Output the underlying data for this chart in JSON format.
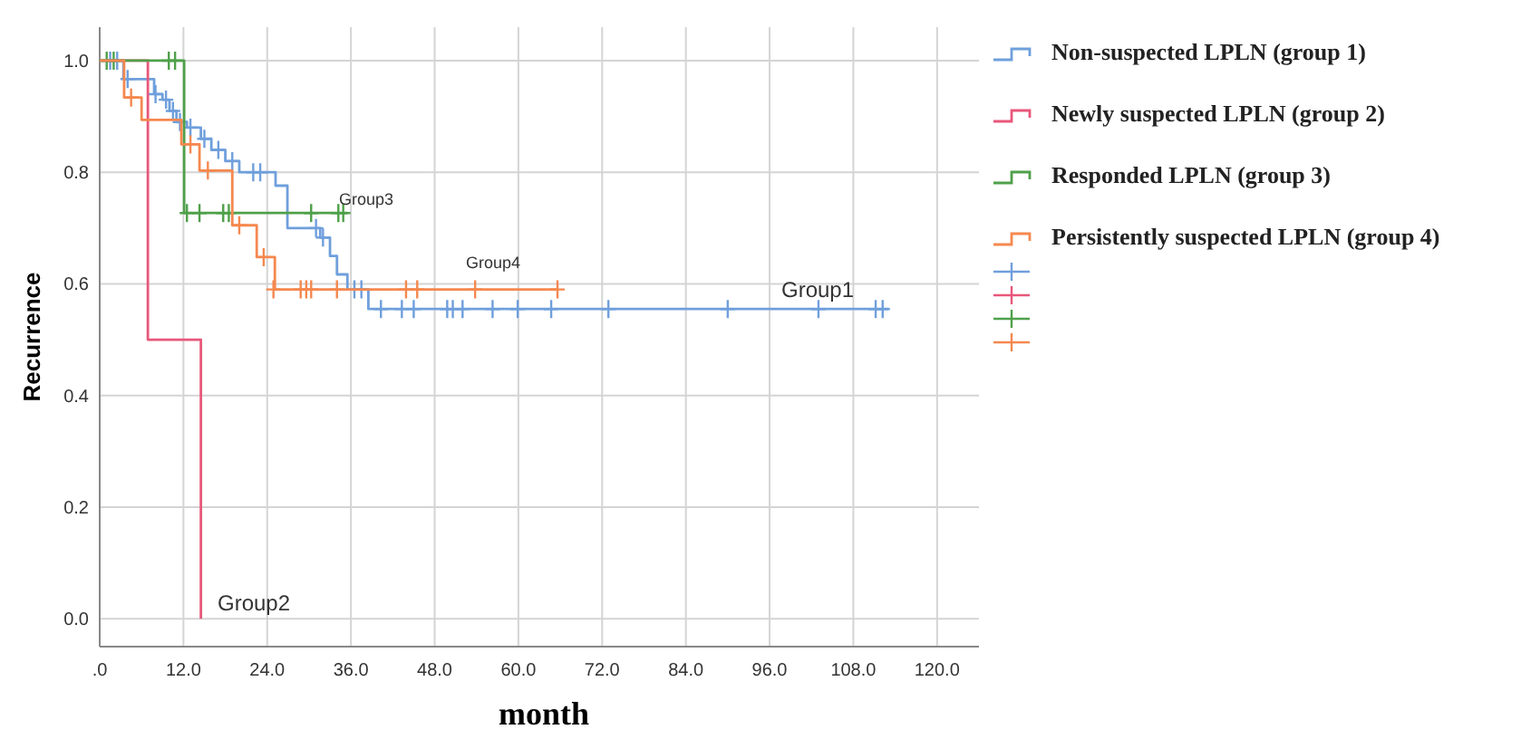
{
  "chart_data": {
    "type": "step",
    "xlabel": "month",
    "ylabel": "Recurrence",
    "xlim": [
      0,
      126
    ],
    "ylim": [
      -0.05,
      1.06
    ],
    "xticks": [
      {
        "value": 0,
        "label": ".0"
      },
      {
        "value": 12,
        "label": "12.0"
      },
      {
        "value": 24,
        "label": "24.0"
      },
      {
        "value": 36,
        "label": "36.0"
      },
      {
        "value": 48,
        "label": "48.0"
      },
      {
        "value": 60,
        "label": "60.0"
      },
      {
        "value": 72,
        "label": "72.0"
      },
      {
        "value": 84,
        "label": "84.0"
      },
      {
        "value": 96,
        "label": "96.0"
      },
      {
        "value": 108,
        "label": "108.0"
      },
      {
        "value": 120,
        "label": "120.0"
      }
    ],
    "yticks": [
      {
        "value": 0,
        "label": "0.0"
      },
      {
        "value": 0.2,
        "label": "0.2"
      },
      {
        "value": 0.4,
        "label": "0.4"
      },
      {
        "value": 0.6,
        "label": "0.6"
      },
      {
        "value": 0.8,
        "label": "0.8"
      },
      {
        "value": 1,
        "label": "1.0"
      }
    ],
    "grid": true,
    "legend": "right",
    "line_style": "solid",
    "series": [
      {
        "name": "Non-suspected LPLN (group 1)",
        "color": "#6f9fdc",
        "x": [
          0,
          3.4,
          7.8,
          9,
          10,
          11,
          12.5,
          14.5,
          16,
          18,
          20,
          25.2,
          26.9,
          31.6,
          33,
          34,
          35.5,
          38.5,
          113
        ],
        "values": [
          1,
          0.967,
          0.94,
          0.93,
          0.91,
          0.89,
          0.88,
          0.86,
          0.84,
          0.82,
          0.8,
          0.776,
          0.7,
          0.683,
          0.65,
          0.617,
          0.59,
          0.555,
          0.555
        ]
      },
      {
        "name": "Newly suspected LPLN (group 2)",
        "color": "#e8577a",
        "x": [
          0,
          6.9,
          14.5
        ],
        "values": [
          1,
          0.5,
          0
        ]
      },
      {
        "name": "Responded LPLN (group 3)",
        "color": "#4fa04a",
        "x": [
          0,
          12.1,
          35.5
        ],
        "values": [
          1,
          0.727,
          0.727
        ]
      },
      {
        "name": "Persistently suspected LPLN (group 4)",
        "color": "#f5884f",
        "x": [
          0,
          3.5,
          6,
          11.7,
          14.3,
          19,
          22.5,
          25.1,
          65.7
        ],
        "values": [
          1,
          0.934,
          0.894,
          0.85,
          0.803,
          0.705,
          0.648,
          0.59,
          0.59
        ]
      },
      {
        "type": "scatter",
        "marker": "cross",
        "color": "#6f9fdc",
        "x": [
          1.5,
          2.5,
          4,
          8,
          9.5,
          10.5,
          11.5,
          13,
          15,
          17,
          19,
          22,
          23,
          31,
          32,
          36.5,
          37.5,
          40.3,
          43.3,
          45,
          49.8,
          50.6,
          52,
          56.3,
          59.9,
          64.7,
          72.9,
          90,
          103,
          111.2,
          112.2
        ],
        "values": [
          1,
          1,
          0.967,
          0.94,
          0.93,
          0.91,
          0.89,
          0.88,
          0.86,
          0.84,
          0.82,
          0.8,
          0.8,
          0.7,
          0.683,
          0.59,
          0.59,
          0.555,
          0.555,
          0.555,
          0.555,
          0.555,
          0.555,
          0.555,
          0.555,
          0.555,
          0.555,
          0.555,
          0.555,
          0.555,
          0.555
        ]
      },
      {
        "type": "scatter",
        "marker": "cross",
        "color": "#4fa04a",
        "x": [
          1,
          2,
          9.9,
          10.8,
          12.5,
          14.3,
          17.7,
          18.5,
          30.3,
          34.2,
          34.9
        ],
        "values": [
          1,
          1,
          1,
          1,
          0.727,
          0.727,
          0.727,
          0.727,
          0.727,
          0.727,
          0.727
        ]
      },
      {
        "type": "scatter",
        "marker": "cross",
        "color": "#f5884f",
        "x": [
          4.5,
          13,
          15.5,
          20,
          23.5,
          24.9,
          28.8,
          29.6,
          30.3,
          34,
          43.9,
          45.5,
          53.8,
          65.6
        ],
        "values": [
          0.934,
          0.85,
          0.803,
          0.705,
          0.648,
          0.59,
          0.59,
          0.59,
          0.59,
          0.59,
          0.59,
          0.59,
          0.59,
          0.59
        ]
      }
    ],
    "annotations": [
      "Group1",
      "Group2",
      "Group3",
      "Group4"
    ]
  }
}
